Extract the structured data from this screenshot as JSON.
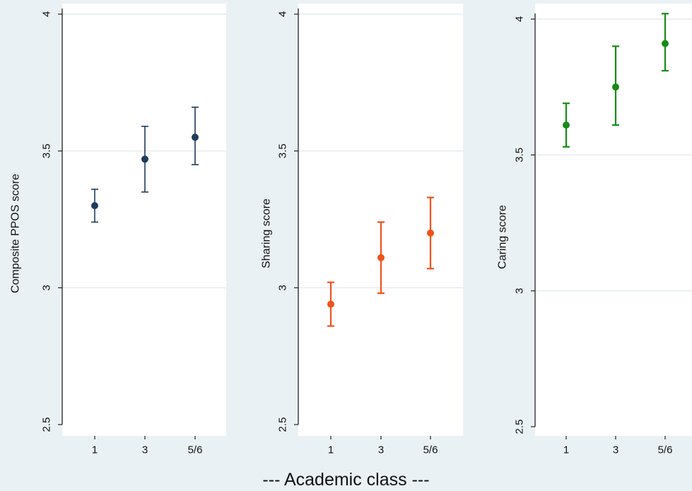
{
  "footer": {
    "label": "--- Academic class ---"
  },
  "chart_data": [
    {
      "type": "scatter",
      "error_bars": true,
      "ylabel": "Composite PPOS score",
      "categories": [
        "1",
        "3",
        "5/6"
      ],
      "values": [
        3.3,
        3.47,
        3.55
      ],
      "lower": [
        3.24,
        3.35,
        3.45
      ],
      "upper": [
        3.36,
        3.59,
        3.66
      ],
      "ylim": [
        2.5,
        4
      ],
      "yticks": [
        "2.5",
        "3",
        "3.5",
        "4"
      ],
      "grid": "horizontal",
      "color": "#1f3b5a"
    },
    {
      "type": "scatter",
      "error_bars": true,
      "ylabel": "Sharing score",
      "categories": [
        "1",
        "3",
        "5/6"
      ],
      "values": [
        2.94,
        3.11,
        3.2
      ],
      "lower": [
        2.86,
        2.98,
        3.07
      ],
      "upper": [
        3.02,
        3.24,
        3.33
      ],
      "ylim": [
        2.5,
        4
      ],
      "yticks": [
        "2.5",
        "3",
        "3.5",
        "4"
      ],
      "grid": "horizontal",
      "color": "#f0521c"
    },
    {
      "type": "scatter",
      "error_bars": true,
      "ylabel": "Caring score",
      "categories": [
        "1",
        "3",
        "5/6"
      ],
      "values": [
        3.61,
        3.75,
        3.91
      ],
      "lower": [
        3.53,
        3.61,
        3.81
      ],
      "upper": [
        3.69,
        3.9,
        4.02
      ],
      "ylim": [
        2.5,
        4
      ],
      "yticks": [
        "2.5",
        "3",
        "3.5",
        "4"
      ],
      "grid": "horizontal",
      "color": "#188a18"
    }
  ]
}
